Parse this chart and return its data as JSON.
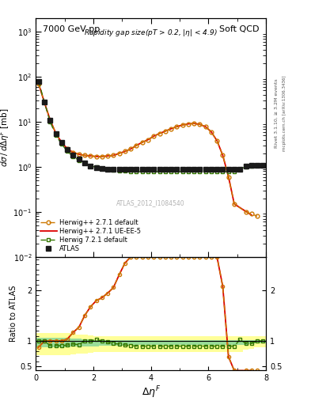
{
  "title_left": "7000 GeV pp",
  "title_right": "Soft QCD",
  "annotation": "Rapidity gap size(pT > 0.2, |#eta| < 4.9)",
  "watermark": "ATLAS_2012_I1084540",
  "ylabel_main": "d#sigma / d#Delta#eta^{F} [mb]",
  "ylabel_ratio": "Ratio to ATLAS",
  "xlabel": "#Delta#eta^{F}",
  "right_label1": "Rivet 3.1.10, #geq 3.2M events",
  "right_label2": "mcplots.cern.ch [arXiv:1306.3436]",
  "xlim": [
    0,
    8
  ],
  "ylim_main": [
    0.01,
    2000
  ],
  "ylim_ratio": [
    0.42,
    2.65
  ],
  "atlas_x": [
    0.1,
    0.3,
    0.5,
    0.7,
    0.9,
    1.1,
    1.3,
    1.5,
    1.7,
    1.9,
    2.1,
    2.3,
    2.5,
    2.7,
    2.9,
    3.1,
    3.3,
    3.5,
    3.7,
    3.9,
    4.1,
    4.3,
    4.5,
    4.7,
    4.9,
    5.1,
    5.3,
    5.5,
    5.7,
    5.9,
    6.1,
    6.3,
    6.5,
    6.7,
    6.9,
    7.1,
    7.3,
    7.5,
    7.7,
    7.9
  ],
  "atlas_y": [
    80,
    27,
    11,
    5.5,
    3.5,
    2.4,
    1.8,
    1.5,
    1.2,
    1.05,
    0.95,
    0.92,
    0.9,
    0.88,
    0.87,
    0.87,
    0.87,
    0.87,
    0.87,
    0.87,
    0.87,
    0.87,
    0.87,
    0.87,
    0.87,
    0.87,
    0.87,
    0.87,
    0.87,
    0.87,
    0.87,
    0.87,
    0.87,
    0.87,
    0.87,
    0.87,
    1.05,
    1.1,
    1.1,
    1.1
  ],
  "hw271d_x": [
    0.1,
    0.3,
    0.5,
    0.7,
    0.9,
    1.1,
    1.3,
    1.5,
    1.7,
    1.9,
    2.1,
    2.3,
    2.5,
    2.7,
    2.9,
    3.1,
    3.3,
    3.5,
    3.7,
    3.9,
    4.1,
    4.3,
    4.5,
    4.7,
    4.9,
    5.1,
    5.3,
    5.5,
    5.7,
    5.9,
    6.1,
    6.3,
    6.5,
    6.7,
    6.9,
    7.3,
    7.5,
    7.7
  ],
  "hw271d_y": [
    70,
    27,
    11,
    5.5,
    3.5,
    2.5,
    2.1,
    1.9,
    1.8,
    1.75,
    1.7,
    1.7,
    1.75,
    1.8,
    2.0,
    2.2,
    2.5,
    3.0,
    3.5,
    4.0,
    4.8,
    5.5,
    6.2,
    7.0,
    7.8,
    8.5,
    9.0,
    9.2,
    8.8,
    7.8,
    6.0,
    3.8,
    1.8,
    0.6,
    0.15,
    0.1,
    0.09,
    0.08
  ],
  "hw271u_x": [
    0.1,
    0.3,
    0.5,
    0.7,
    0.9,
    1.1,
    1.3,
    1.5,
    1.7,
    1.9,
    2.1,
    2.3,
    2.5,
    2.7,
    2.9,
    3.1,
    3.3,
    3.5,
    3.7,
    3.9,
    4.1,
    4.3,
    4.5,
    4.7,
    4.9,
    5.1,
    5.3,
    5.5,
    5.7,
    5.9,
    6.1,
    6.3,
    6.5,
    6.7,
    6.9,
    7.5
  ],
  "hw271u_y": [
    70,
    27,
    11,
    5.5,
    3.5,
    2.5,
    2.1,
    1.9,
    1.8,
    1.75,
    1.7,
    1.7,
    1.75,
    1.8,
    2.0,
    2.2,
    2.5,
    3.0,
    3.5,
    4.0,
    4.8,
    5.5,
    6.2,
    7.0,
    7.8,
    8.5,
    9.0,
    9.2,
    8.8,
    7.8,
    6.0,
    3.8,
    1.8,
    0.6,
    0.15,
    0.085
  ],
  "hw721d_x": [
    0.1,
    0.3,
    0.5,
    0.7,
    0.9,
    1.1,
    1.3,
    1.5,
    1.7,
    1.9,
    2.1,
    2.3,
    2.5,
    2.7,
    2.9,
    3.1,
    3.3,
    3.5,
    3.7,
    3.9,
    4.1,
    4.3,
    4.5,
    4.7,
    4.9,
    5.1,
    5.3,
    5.5,
    5.7,
    5.9,
    6.1,
    6.3,
    6.5,
    6.7,
    6.9,
    7.1,
    7.3,
    7.5,
    7.7,
    7.9
  ],
  "hw721d_y": [
    80,
    27,
    10,
    5.0,
    3.2,
    2.2,
    1.7,
    1.4,
    1.2,
    1.05,
    0.98,
    0.92,
    0.88,
    0.84,
    0.82,
    0.8,
    0.79,
    0.78,
    0.78,
    0.78,
    0.78,
    0.78,
    0.78,
    0.78,
    0.78,
    0.78,
    0.78,
    0.78,
    0.78,
    0.78,
    0.78,
    0.78,
    0.78,
    0.78,
    0.78,
    0.9,
    1.0,
    1.05,
    1.1,
    1.1
  ],
  "r271d_x": [
    0.1,
    0.3,
    0.5,
    0.7,
    0.9,
    1.1,
    1.3,
    1.5,
    1.7,
    1.9,
    2.1,
    2.3,
    2.5,
    2.7,
    2.9,
    3.1,
    3.3,
    3.5,
    3.7,
    3.9,
    4.1,
    4.3,
    4.5,
    4.7,
    4.9,
    5.1,
    5.3,
    5.5,
    5.7,
    5.9,
    6.1,
    6.3,
    6.5,
    6.7,
    6.9,
    7.3,
    7.5,
    7.7
  ],
  "r271d_y": [
    0.88,
    1.0,
    1.0,
    1.0,
    1.0,
    1.04,
    1.17,
    1.27,
    1.5,
    1.67,
    1.79,
    1.85,
    1.94,
    2.05,
    2.3,
    2.53,
    2.87,
    3.45,
    4.02,
    4.6,
    5.52,
    6.32,
    7.13,
    8.05,
    8.97,
    9.77,
    10.34,
    10.57,
    10.11,
    8.97,
    6.9,
    4.37,
    2.07,
    0.69,
    0.17,
    0.11,
    0.1,
    0.09
  ],
  "r271u_x": [
    0.1,
    0.3,
    0.5,
    0.7,
    0.9,
    1.1,
    1.3,
    1.5,
    1.7,
    1.9,
    2.1,
    2.3,
    2.5,
    2.7,
    2.9,
    3.1,
    3.3,
    3.5,
    3.7,
    3.9,
    4.1,
    4.3,
    4.5,
    4.7,
    4.9,
    5.1,
    5.3,
    5.5,
    5.7,
    5.9,
    6.1,
    6.3,
    6.5,
    6.7,
    6.9,
    7.5
  ],
  "r271u_y": [
    0.88,
    1.0,
    1.0,
    1.0,
    1.0,
    1.04,
    1.17,
    1.27,
    1.5,
    1.67,
    1.79,
    1.85,
    1.94,
    2.05,
    2.3,
    2.53,
    2.87,
    3.45,
    4.02,
    4.6,
    5.52,
    6.32,
    7.13,
    8.05,
    8.97,
    9.77,
    10.34,
    10.57,
    10.11,
    8.97,
    6.9,
    4.37,
    2.07,
    0.69,
    0.17,
    0.098
  ],
  "r721d_x": [
    0.1,
    0.3,
    0.5,
    0.7,
    0.9,
    1.1,
    1.3,
    1.5,
    1.7,
    1.9,
    2.1,
    2.3,
    2.5,
    2.7,
    2.9,
    3.1,
    3.3,
    3.5,
    3.7,
    3.9,
    4.1,
    4.3,
    4.5,
    4.7,
    4.9,
    5.1,
    5.3,
    5.5,
    5.7,
    5.9,
    6.1,
    6.3,
    6.5,
    6.7,
    6.9,
    7.1,
    7.3,
    7.5,
    7.7,
    7.9
  ],
  "r721d_y": [
    1.0,
    1.0,
    0.91,
    0.91,
    0.91,
    0.92,
    0.94,
    0.93,
    1.0,
    1.0,
    1.03,
    1.0,
    0.98,
    0.95,
    0.94,
    0.92,
    0.91,
    0.9,
    0.9,
    0.9,
    0.9,
    0.9,
    0.9,
    0.9,
    0.9,
    0.9,
    0.9,
    0.9,
    0.9,
    0.9,
    0.9,
    0.9,
    0.9,
    0.9,
    0.9,
    1.03,
    0.95,
    0.95,
    1.0,
    1.0
  ],
  "band_yellow_lo": [
    0.72,
    0.72,
    0.72,
    0.72,
    0.72,
    0.73,
    0.74,
    0.75,
    0.76,
    0.77,
    0.78,
    0.78,
    0.79,
    0.79,
    0.79,
    0.79,
    0.79,
    0.79,
    0.79,
    0.79,
    0.79,
    0.79,
    0.79,
    0.79,
    0.79,
    0.79,
    0.79,
    0.79,
    0.79,
    0.79,
    0.79,
    0.79,
    0.79,
    0.79,
    0.79,
    0.79,
    0.83,
    0.85,
    0.88,
    0.88
  ],
  "band_yellow_hi": [
    1.15,
    1.15,
    1.15,
    1.15,
    1.15,
    1.15,
    1.14,
    1.13,
    1.12,
    1.11,
    1.1,
    1.1,
    1.1,
    1.1,
    1.1,
    1.1,
    1.1,
    1.1,
    1.1,
    1.1,
    1.1,
    1.1,
    1.1,
    1.1,
    1.1,
    1.1,
    1.1,
    1.1,
    1.1,
    1.1,
    1.1,
    1.1,
    1.1,
    1.1,
    1.1,
    1.1,
    1.1,
    1.1,
    1.1,
    1.1
  ],
  "band_green_lo": [
    0.88,
    0.88,
    0.88,
    0.88,
    0.88,
    0.88,
    0.89,
    0.89,
    0.9,
    0.9,
    0.9,
    0.91,
    0.91,
    0.91,
    0.91,
    0.91,
    0.92,
    0.92,
    0.92,
    0.92,
    0.92,
    0.92,
    0.92,
    0.92,
    0.92,
    0.92,
    0.92,
    0.92,
    0.92,
    0.92,
    0.92,
    0.92,
    0.92,
    0.92,
    0.92,
    0.92,
    0.93,
    0.94,
    0.95,
    0.95
  ],
  "band_green_hi": [
    1.06,
    1.06,
    1.06,
    1.06,
    1.06,
    1.06,
    1.05,
    1.05,
    1.04,
    1.03,
    1.02,
    1.02,
    1.02,
    1.02,
    1.02,
    1.02,
    1.02,
    1.02,
    1.02,
    1.02,
    1.02,
    1.02,
    1.02,
    1.02,
    1.02,
    1.02,
    1.02,
    1.02,
    1.02,
    1.02,
    1.02,
    1.02,
    1.02,
    1.02,
    1.02,
    1.02,
    1.02,
    1.02,
    1.02,
    1.02
  ],
  "band_x": [
    0.1,
    0.3,
    0.5,
    0.7,
    0.9,
    1.1,
    1.3,
    1.5,
    1.7,
    1.9,
    2.1,
    2.3,
    2.5,
    2.7,
    2.9,
    3.1,
    3.3,
    3.5,
    3.7,
    3.9,
    4.1,
    4.3,
    4.5,
    4.7,
    4.9,
    5.1,
    5.3,
    5.5,
    5.7,
    5.9,
    6.1,
    6.3,
    6.5,
    6.7,
    6.9,
    7.1,
    7.3,
    7.5,
    7.7,
    7.9
  ],
  "color_atlas": "#1a1a1a",
  "color_hw271d": "#cc7700",
  "color_hw271u": "#dd0000",
  "color_hw721d": "#337700",
  "color_yellow": "#ffff99",
  "color_green": "#99dd99",
  "bg_color": "#ffffff"
}
